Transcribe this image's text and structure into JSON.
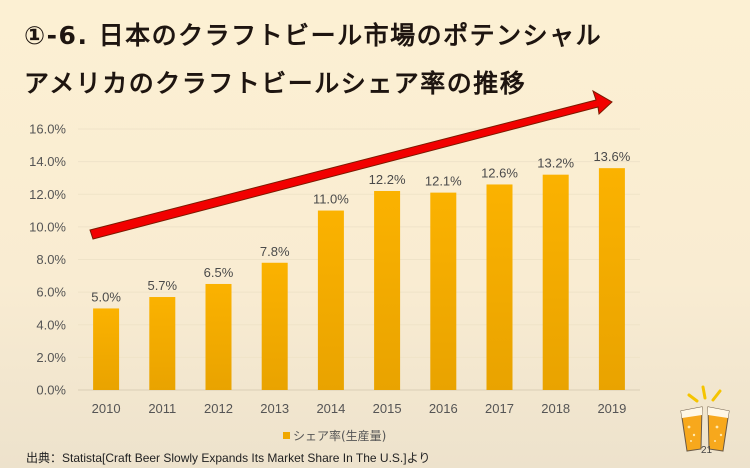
{
  "slide": {
    "title_line1": "①-6. 日本のクラフトビール市場のポテンシャル",
    "title_line2": "アメリカのクラフトビールシェア率の推移",
    "source": "出典：Statista[Craft Beer Slowly Expands Its Market Share In The U.S.]より",
    "page_number": "21",
    "decoration_icon": "beer-toast-icon"
  },
  "chart_data": {
    "type": "bar",
    "title": "アメリカのクラフトビールシェア率の推移",
    "xlabel": "",
    "ylabel": "",
    "categories": [
      "2010",
      "2011",
      "2012",
      "2013",
      "2014",
      "2015",
      "2016",
      "2017",
      "2018",
      "2019"
    ],
    "series": [
      {
        "name": "シェア率(生産量)",
        "values": [
          5.0,
          5.7,
          6.5,
          7.8,
          11.0,
          12.2,
          12.1,
          12.6,
          13.2,
          13.6
        ],
        "labels": [
          "5.0%",
          "5.7%",
          "6.5%",
          "7.8%",
          "11.0%",
          "12.2%",
          "12.1%",
          "12.6%",
          "13.2%",
          "13.6%"
        ],
        "color": "#f5a900"
      }
    ],
    "ylim": [
      0,
      16
    ],
    "yticks": [
      "0.0%",
      "2.0%",
      "4.0%",
      "6.0%",
      "8.0%",
      "10.0%",
      "12.0%",
      "14.0%",
      "16.0%"
    ],
    "ytick_values": [
      0,
      2,
      4,
      6,
      8,
      10,
      12,
      14,
      16
    ],
    "grid": true,
    "legend": {
      "position": "bottom",
      "label": "シェア率(生産量)"
    },
    "annotation": {
      "type": "trend-arrow",
      "direction": "upward",
      "color": "#ff0000"
    }
  }
}
